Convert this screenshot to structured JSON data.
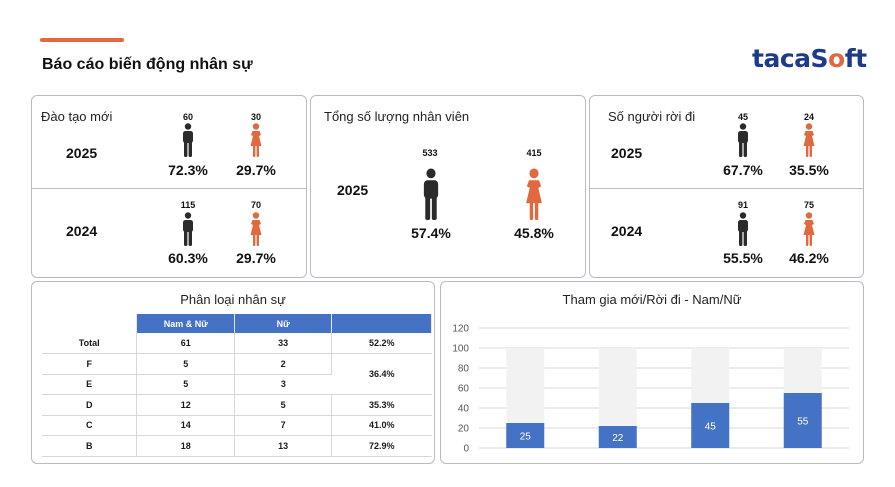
{
  "header": {
    "title": "Báo cáo biến động nhân sự",
    "logo_prefix": "taca",
    "logo_s": "S",
    "logo_o": "o",
    "logo_suffix": "ft"
  },
  "colors": {
    "male": "#2b2b2b",
    "female": "#e0693f",
    "accent": "#e0693f",
    "bar": "#4472c4",
    "bar_bg": "#f2f2f2",
    "brand": "#1e3a8a"
  },
  "new_training": {
    "title": "Đào tạo mới",
    "rows": [
      {
        "year": "2025",
        "male_count": "60",
        "female_count": "30",
        "male_pct": "72.3%",
        "female_pct": "29.7%"
      },
      {
        "year": "2024",
        "male_count": "115",
        "female_count": "70",
        "male_pct": "60.3%",
        "female_pct": "29.7%"
      }
    ]
  },
  "total_staff": {
    "title": "Tổng số lượng nhân viên",
    "year": "2025",
    "male_count": "533",
    "female_count": "415",
    "male_pct": "57.4%",
    "female_pct": "45.8%"
  },
  "leavers": {
    "title": "Số người rời đi",
    "rows": [
      {
        "year": "2025",
        "male_count": "45",
        "female_count": "24",
        "male_pct": "67.7%",
        "female_pct": "35.5%"
      },
      {
        "year": "2024",
        "male_count": "91",
        "female_count": "75",
        "male_pct": "55.5%",
        "female_pct": "46.2%"
      }
    ]
  },
  "classification": {
    "title": "Phân loại nhân sự",
    "headers": [
      "",
      "Nam & Nữ",
      "Nữ",
      ""
    ],
    "rows": [
      [
        "Total",
        "61",
        "33",
        "52.2%"
      ],
      [
        "F",
        "5",
        "2",
        ""
      ],
      [
        "E",
        "5",
        "3",
        ""
      ],
      [
        "D",
        "12",
        "5",
        "35.3%"
      ],
      [
        "C",
        "14",
        "7",
        "41.0%"
      ],
      [
        "B",
        "18",
        "13",
        "72.9%"
      ]
    ],
    "merged_pct": "36.4%"
  },
  "chart_data": {
    "type": "bar",
    "title": "Tham gia mới/Rời đi - Nam/Nữ",
    "categories": [
      "",
      "",
      "",
      ""
    ],
    "values": [
      25,
      22,
      45,
      55
    ],
    "background_values": [
      100,
      100,
      100,
      100
    ],
    "ylim": [
      0,
      120
    ],
    "yticks": [
      0,
      20,
      40,
      60,
      80,
      100,
      120
    ],
    "grid": true,
    "xlabel": "",
    "ylabel": ""
  }
}
